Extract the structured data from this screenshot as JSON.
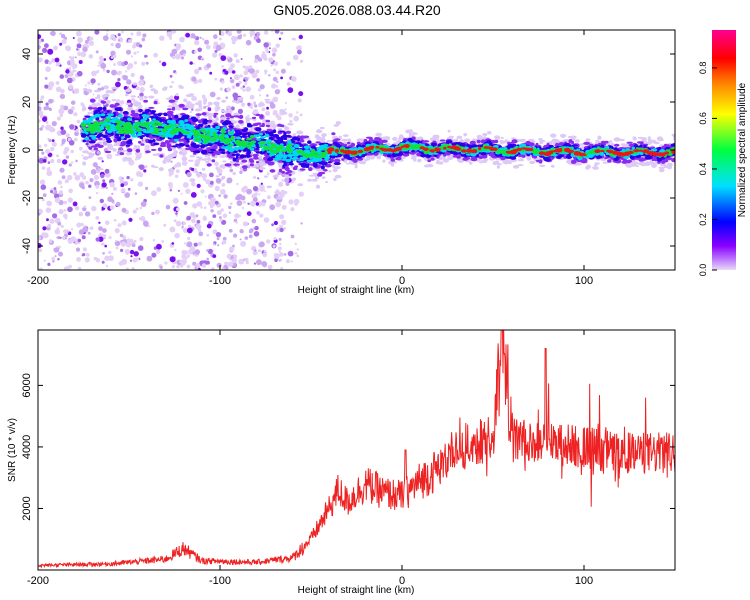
{
  "chart_data": [
    {
      "type": "heatmap",
      "title": "GN05.2026.088.03.44.R20",
      "xlabel": "Height of straight line (km)",
      "ylabel": "Frequency (Hz)",
      "xlim": [
        -200,
        150
      ],
      "ylim": [
        -50,
        50
      ],
      "xticks": [
        -200,
        -100,
        0,
        100
      ],
      "yticks": [
        -40,
        -20,
        0,
        20,
        40
      ],
      "ridge": {
        "description_points_x": [
          -160,
          -130,
          -100,
          -75,
          -55,
          -40,
          0,
          50,
          100,
          150
        ],
        "frequency_hz": [
          10,
          9,
          5,
          2,
          -2,
          -1,
          1,
          0,
          -1,
          -1
        ]
      },
      "colorbar": {
        "label": "Normalized spectral amplitude",
        "range": [
          0.0,
          0.95
        ],
        "ticks": [
          "0.0",
          "0.2",
          "0.4",
          "0.6",
          "0.8"
        ],
        "colors": [
          "#e4d4f8",
          "#7a00ff",
          "#0000ff",
          "#00e0ff",
          "#00ff40",
          "#ffff00",
          "#ff8000",
          "#ff0000",
          "#ff00a0"
        ]
      }
    },
    {
      "type": "line",
      "xlabel": "Height of straight line (km)",
      "ylabel": "SNR (10 * v/v)",
      "xlim": [
        -200,
        150
      ],
      "ylim": [
        0,
        7800
      ],
      "xticks": [
        -200,
        -100,
        0,
        100
      ],
      "yticks": [
        2000,
        4000,
        6000
      ],
      "series": [
        {
          "name": "SNR",
          "color": "#ee2222",
          "x": [
            -200,
            -160,
            -130,
            -120,
            -110,
            -80,
            -60,
            -50,
            -40,
            -35,
            -30,
            -20,
            -10,
            0,
            10,
            20,
            30,
            40,
            50,
            55,
            60,
            80,
            100,
            120,
            150
          ],
          "y": [
            150,
            200,
            350,
            700,
            300,
            250,
            400,
            1000,
            2000,
            2600,
            2200,
            2800,
            2500,
            2400,
            2900,
            3300,
            3900,
            4100,
            4300,
            7800,
            4200,
            4100,
            4000,
            3800,
            3800
          ]
        }
      ]
    }
  ]
}
